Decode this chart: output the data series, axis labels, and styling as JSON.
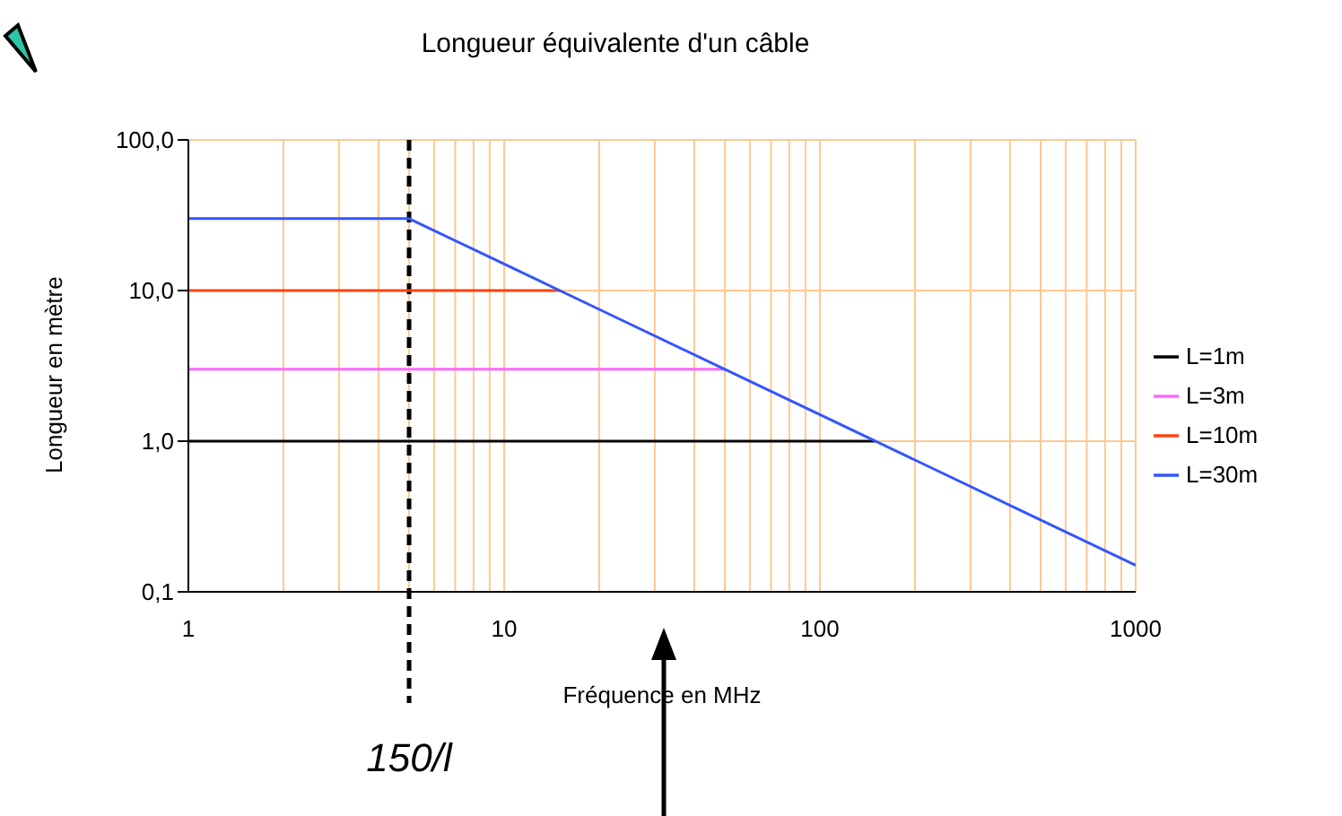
{
  "chart_data": {
    "type": "line",
    "title": "Longueur équivalente d'un câble",
    "xlabel": "Fréquence en MHz",
    "ylabel": "Longueur en mètre",
    "log": "xy",
    "xlim": [
      1,
      1000
    ],
    "ylim": [
      0.1,
      100
    ],
    "xticks": [
      1,
      {
        "value": 2,
        "label": null
      },
      {
        "value": 3,
        "label": null
      },
      {
        "value": 4,
        "label": null
      },
      {
        "value": 5,
        "label": null
      },
      {
        "value": 6,
        "label": null
      },
      {
        "value": 7,
        "label": null
      },
      {
        "value": 8,
        "label": null
      },
      {
        "value": 9,
        "label": null
      },
      10,
      {
        "value": 20,
        "label": null
      },
      {
        "value": 30,
        "label": null
      },
      {
        "value": 40,
        "label": null
      },
      {
        "value": 50,
        "label": null
      },
      {
        "value": 60,
        "label": null
      },
      {
        "value": 70,
        "label": null
      },
      {
        "value": 80,
        "label": null
      },
      {
        "value": 90,
        "label": null
      },
      100,
      {
        "value": 200,
        "label": null
      },
      {
        "value": 300,
        "label": null
      },
      {
        "value": 400,
        "label": null
      },
      {
        "value": 500,
        "label": null
      },
      {
        "value": 600,
        "label": null
      },
      {
        "value": 700,
        "label": null
      },
      {
        "value": 800,
        "label": null
      },
      {
        "value": 900,
        "label": null
      },
      1000
    ],
    "yticks": [
      {
        "value": 0.1,
        "label": "0,1"
      },
      {
        "value": 1,
        "label": "1,0"
      },
      {
        "value": 10,
        "label": "10,0"
      },
      {
        "value": 100,
        "label": "100,0"
      }
    ],
    "grid": true,
    "legend": "right",
    "marker": "none",
    "line_style": "solid",
    "series": [
      {
        "name": "L=1m",
        "color": "#000000",
        "x": [
          1,
          150
        ],
        "values": [
          1,
          1
        ]
      },
      {
        "name": "L=3m",
        "color": "#ff66ff",
        "x": [
          1,
          50
        ],
        "values": [
          3,
          3
        ]
      },
      {
        "name": "L=10m",
        "color": "#ff4010",
        "x": [
          1,
          15
        ],
        "values": [
          10,
          10
        ]
      },
      {
        "name": "L=30m",
        "color": "#3355ff",
        "x": [
          1,
          5,
          10,
          20,
          50,
          100,
          200,
          500,
          1000
        ],
        "values": [
          30,
          30,
          15,
          7.5,
          3,
          1.5,
          0.75,
          0.3,
          0.15
        ]
      }
    ],
    "ref_lines": [
      {
        "axis": "x",
        "value": 5,
        "label": "150/l",
        "color": "#000000",
        "line_style": "dashed"
      }
    ]
  }
}
